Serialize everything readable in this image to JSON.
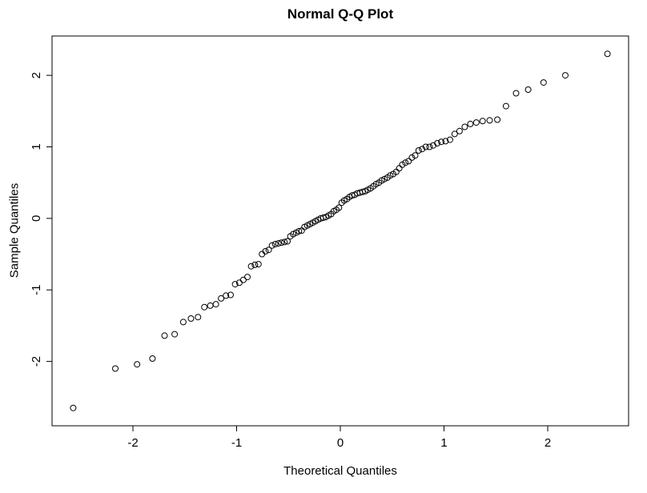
{
  "chart_data": {
    "type": "scatter",
    "title": "Normal Q-Q Plot",
    "xlabel": "Theoretical Quantiles",
    "ylabel": "Sample Quantiles",
    "x_ticks": [
      -2,
      -1,
      0,
      1,
      2
    ],
    "y_ticks": [
      -2,
      -1,
      0,
      1,
      2
    ],
    "xlim": [
      -2.78,
      2.78
    ],
    "ylim": [
      -2.9,
      2.55
    ],
    "grid": "off",
    "legend": "none",
    "marker": "open-circle",
    "marker_color": "#000000",
    "background_color": "#ffffff",
    "n_points": 100,
    "x": [
      -2.576,
      -2.17,
      -1.96,
      -1.812,
      -1.695,
      -1.598,
      -1.514,
      -1.44,
      -1.372,
      -1.311,
      -1.254,
      -1.2,
      -1.15,
      -1.103,
      -1.058,
      -1.015,
      -0.974,
      -0.935,
      -0.896,
      -0.86,
      -0.824,
      -0.789,
      -0.755,
      -0.722,
      -0.69,
      -0.659,
      -0.628,
      -0.598,
      -0.568,
      -0.539,
      -0.51,
      -0.482,
      -0.454,
      -0.426,
      -0.399,
      -0.372,
      -0.345,
      -0.319,
      -0.292,
      -0.266,
      -0.24,
      -0.215,
      -0.189,
      -0.164,
      -0.138,
      -0.113,
      -0.088,
      -0.063,
      -0.038,
      -0.013,
      0.013,
      0.038,
      0.063,
      0.088,
      0.113,
      0.138,
      0.164,
      0.189,
      0.215,
      0.24,
      0.266,
      0.292,
      0.319,
      0.345,
      0.372,
      0.399,
      0.426,
      0.454,
      0.482,
      0.51,
      0.539,
      0.568,
      0.598,
      0.628,
      0.659,
      0.69,
      0.722,
      0.755,
      0.789,
      0.824,
      0.86,
      0.896,
      0.935,
      0.974,
      1.015,
      1.058,
      1.103,
      1.15,
      1.2,
      1.254,
      1.311,
      1.372,
      1.44,
      1.514,
      1.598,
      1.695,
      1.812,
      1.96,
      2.17,
      2.576
    ],
    "y": [
      -2.65,
      -2.1,
      -2.04,
      -1.96,
      -1.64,
      -1.62,
      -1.45,
      -1.4,
      -1.38,
      -1.24,
      -1.22,
      -1.2,
      -1.12,
      -1.08,
      -1.07,
      -0.92,
      -0.9,
      -0.86,
      -0.82,
      -0.67,
      -0.65,
      -0.64,
      -0.5,
      -0.46,
      -0.44,
      -0.38,
      -0.36,
      -0.35,
      -0.34,
      -0.33,
      -0.32,
      -0.25,
      -0.22,
      -0.2,
      -0.18,
      -0.17,
      -0.12,
      -0.1,
      -0.08,
      -0.06,
      -0.04,
      -0.02,
      0.0,
      0.01,
      0.02,
      0.04,
      0.06,
      0.1,
      0.12,
      0.15,
      0.22,
      0.25,
      0.27,
      0.3,
      0.32,
      0.33,
      0.35,
      0.36,
      0.37,
      0.38,
      0.4,
      0.42,
      0.45,
      0.48,
      0.5,
      0.53,
      0.55,
      0.57,
      0.6,
      0.62,
      0.65,
      0.7,
      0.75,
      0.78,
      0.8,
      0.85,
      0.88,
      0.95,
      0.97,
      1.0,
      1.0,
      1.02,
      1.05,
      1.07,
      1.08,
      1.1,
      1.18,
      1.22,
      1.28,
      1.32,
      1.34,
      1.36,
      1.37,
      1.38,
      1.57,
      1.75,
      1.8,
      1.9,
      2.0,
      2.3
    ]
  }
}
